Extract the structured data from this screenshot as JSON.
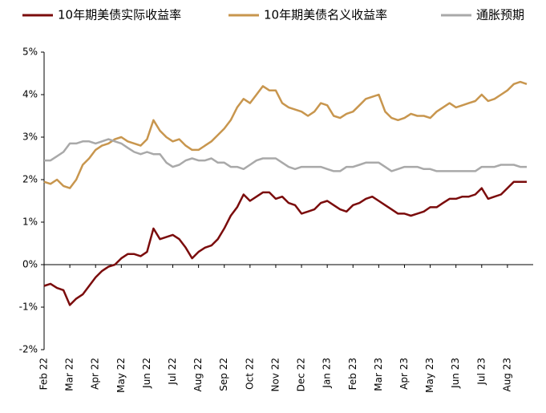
{
  "chart_data": {
    "type": "line",
    "categories": [
      "Feb 22",
      null,
      null,
      null,
      "Mar 22",
      null,
      null,
      null,
      "Apr 22",
      null,
      null,
      null,
      "May 22",
      null,
      null,
      null,
      "Jun 22",
      null,
      null,
      null,
      "Jul 22",
      null,
      null,
      null,
      "Aug 22",
      null,
      null,
      null,
      "Sep 22",
      null,
      null,
      null,
      "Oct 22",
      null,
      null,
      null,
      "Nov 22",
      null,
      null,
      null,
      "Dec 22",
      null,
      null,
      null,
      "Jan 23",
      null,
      null,
      null,
      "Feb 23",
      null,
      null,
      null,
      "Mar 23",
      null,
      null,
      null,
      "Apr 23",
      null,
      null,
      null,
      "May 23",
      null,
      null,
      null,
      "Jun 23",
      null,
      null,
      null,
      "Jul 23",
      null,
      null,
      null,
      "Aug 23",
      null,
      null,
      null
    ],
    "series": [
      {
        "name": "10年期美债实际收益率",
        "color": "#7b0c0c",
        "values": [
          -0.5,
          -0.45,
          -0.55,
          -0.6,
          -0.95,
          -0.8,
          -0.7,
          -0.5,
          -0.3,
          -0.15,
          -0.05,
          0.0,
          0.15,
          0.25,
          0.25,
          0.2,
          0.3,
          0.85,
          0.6,
          0.65,
          0.7,
          0.6,
          0.4,
          0.15,
          0.3,
          0.4,
          0.45,
          0.6,
          0.85,
          1.15,
          1.35,
          1.65,
          1.5,
          1.6,
          1.7,
          1.7,
          1.55,
          1.6,
          1.45,
          1.4,
          1.2,
          1.25,
          1.3,
          1.45,
          1.5,
          1.4,
          1.3,
          1.25,
          1.4,
          1.45,
          1.55,
          1.6,
          1.5,
          1.4,
          1.3,
          1.2,
          1.2,
          1.15,
          1.2,
          1.25,
          1.35,
          1.35,
          1.45,
          1.55,
          1.55,
          1.6,
          1.6,
          1.65,
          1.8,
          1.55,
          1.6,
          1.65,
          1.8,
          1.95,
          1.95,
          1.95
        ]
      },
      {
        "name": "10年期美债名义收益率",
        "color": "#c8964e",
        "values": [
          1.95,
          1.9,
          2.0,
          1.85,
          1.8,
          2.0,
          2.35,
          2.5,
          2.7,
          2.8,
          2.85,
          2.95,
          3.0,
          2.9,
          2.85,
          2.8,
          2.95,
          3.4,
          3.15,
          3.0,
          2.9,
          2.95,
          2.8,
          2.7,
          2.7,
          2.8,
          2.9,
          3.05,
          3.2,
          3.4,
          3.7,
          3.9,
          3.8,
          4.0,
          4.2,
          4.1,
          4.1,
          3.8,
          3.7,
          3.65,
          3.6,
          3.5,
          3.6,
          3.8,
          3.75,
          3.5,
          3.45,
          3.55,
          3.6,
          3.75,
          3.9,
          3.95,
          4.0,
          3.6,
          3.45,
          3.4,
          3.45,
          3.55,
          3.5,
          3.5,
          3.45,
          3.6,
          3.7,
          3.8,
          3.7,
          3.75,
          3.8,
          3.85,
          4.0,
          3.85,
          3.9,
          4.0,
          4.1,
          4.25,
          4.3,
          4.25
        ]
      },
      {
        "name": "通胀预期",
        "color": "#a9a9a9",
        "values": [
          2.45,
          2.45,
          2.55,
          2.65,
          2.85,
          2.85,
          2.9,
          2.9,
          2.85,
          2.9,
          2.95,
          2.9,
          2.85,
          2.75,
          2.65,
          2.6,
          2.65,
          2.6,
          2.6,
          2.4,
          2.3,
          2.35,
          2.45,
          2.5,
          2.45,
          2.45,
          2.5,
          2.4,
          2.4,
          2.3,
          2.3,
          2.25,
          2.35,
          2.45,
          2.5,
          2.5,
          2.5,
          2.4,
          2.3,
          2.25,
          2.3,
          2.3,
          2.3,
          2.3,
          2.25,
          2.2,
          2.2,
          2.3,
          2.3,
          2.35,
          2.4,
          2.4,
          2.4,
          2.3,
          2.2,
          2.25,
          2.3,
          2.3,
          2.3,
          2.25,
          2.25,
          2.2,
          2.2,
          2.2,
          2.2,
          2.2,
          2.2,
          2.2,
          2.3,
          2.3,
          2.3,
          2.35,
          2.35,
          2.35,
          2.3,
          2.3
        ]
      }
    ],
    "ylim": [
      -2,
      5
    ],
    "yticks": [
      {
        "value": -2,
        "label": "-2%"
      },
      {
        "value": -1,
        "label": "-1%"
      },
      {
        "value": 0,
        "label": "0%"
      },
      {
        "value": 1,
        "label": "1%"
      },
      {
        "value": 2,
        "label": "2%"
      },
      {
        "value": 3,
        "label": "3%"
      },
      {
        "value": 4,
        "label": "4%"
      },
      {
        "value": 5,
        "label": "5%"
      }
    ],
    "legend": "top"
  }
}
